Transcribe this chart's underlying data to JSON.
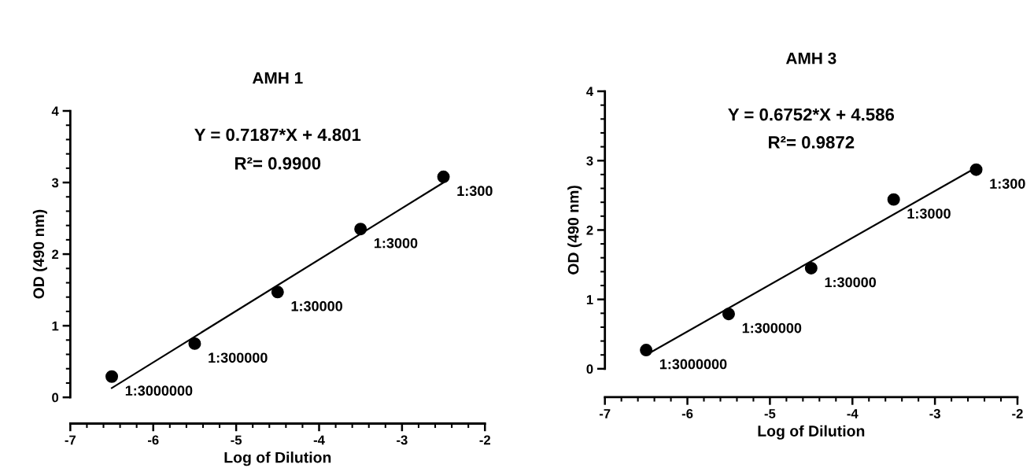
{
  "chart_data": [
    {
      "type": "scatter",
      "title": "AMH 1",
      "xlabel": "Log of Dilution",
      "ylabel": "OD (490 nm)",
      "xlim": [
        -7,
        -2
      ],
      "xticks": [
        -7,
        -6,
        -5,
        -4,
        -3,
        -2
      ],
      "ylim": [
        0,
        4
      ],
      "yticks": [
        0,
        1,
        2,
        3,
        4
      ],
      "grid": false,
      "legend": false,
      "series": [
        {
          "marker": "circle",
          "color": "#000000",
          "x": [
            -6.5,
            -5.5,
            -4.5,
            -3.5,
            -2.5
          ],
          "values": [
            0.29,
            0.75,
            1.47,
            2.35,
            3.08
          ]
        },
        {
          "type": "line",
          "marker": "none",
          "color": "#000000",
          "x": [
            -6.5,
            -2.5
          ],
          "values": [
            0.13,
            3.0
          ]
        }
      ],
      "annotations": [
        "Y = 0.7187*X + 4.801",
        "R²= 0.9900",
        {
          "text": "1:3000000",
          "x": -6.5,
          "y": 0.29
        },
        {
          "text": "1:300000",
          "x": -5.5,
          "y": 0.75
        },
        {
          "text": "1:30000",
          "x": -4.5,
          "y": 1.47
        },
        {
          "text": "1:3000",
          "x": -3.5,
          "y": 2.35
        },
        {
          "text": "1:300",
          "x": -2.5,
          "y": 3.08
        }
      ]
    },
    {
      "type": "scatter",
      "title": "AMH 3",
      "xlabel": "Log of Dilution",
      "ylabel": "OD (490 nm)",
      "xlim": [
        -7,
        -2
      ],
      "xticks": [
        -7,
        -6,
        -5,
        -4,
        -3,
        -2
      ],
      "ylim": [
        0,
        4
      ],
      "yticks": [
        0,
        1,
        2,
        3,
        4
      ],
      "grid": false,
      "legend": false,
      "series": [
        {
          "marker": "circle",
          "color": "#000000",
          "x": [
            -6.5,
            -5.5,
            -4.5,
            -3.5,
            -2.5
          ],
          "values": [
            0.27,
            0.79,
            1.45,
            2.44,
            2.87
          ]
        },
        {
          "type": "line",
          "marker": "none",
          "color": "#000000",
          "x": [
            -6.5,
            -2.5
          ],
          "values": [
            0.2,
            2.9
          ]
        }
      ],
      "annotations": [
        "Y = 0.6752*X + 4.586",
        "R²= 0.9872",
        {
          "text": "1:3000000",
          "x": -6.5,
          "y": 0.27
        },
        {
          "text": "1:300000",
          "x": -5.5,
          "y": 0.79
        },
        {
          "text": "1:30000",
          "x": -4.5,
          "y": 1.45
        },
        {
          "text": "1:3000",
          "x": -3.5,
          "y": 2.44
        },
        {
          "text": "1:300",
          "x": -2.5,
          "y": 2.87
        }
      ]
    }
  ]
}
